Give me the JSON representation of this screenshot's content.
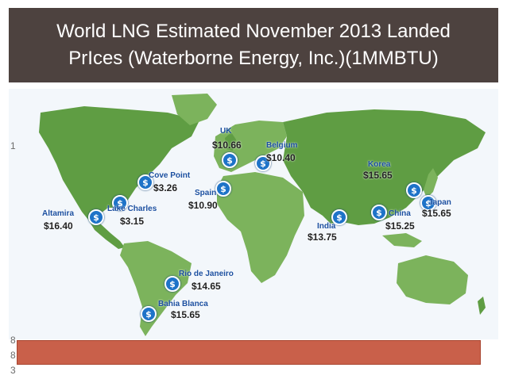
{
  "title": {
    "line1": "World LNG Estimated November 2013 Landed",
    "line2": "PrIces (Waterborne Energy, Inc.)(1MMBTU)"
  },
  "colors": {
    "title_bg": "#4d423f",
    "ocean": "#f3f7fb",
    "land": "#5f9d43",
    "marker": "#1e73c8",
    "bottom_bar": "#c9604a"
  },
  "markers": [
    {
      "name": "UK",
      "price": "$10.66"
    },
    {
      "name": "Belgium",
      "price": "$10.40"
    },
    {
      "name": "Cove Point",
      "price": "$3.26"
    },
    {
      "name": "Spain",
      "price": "$10.90"
    },
    {
      "name": "Lake Charles",
      "price": "$3.15"
    },
    {
      "name": "Altamira",
      "price": "$16.40"
    },
    {
      "name": "Korea",
      "price": "$15.65"
    },
    {
      "name": "Japan",
      "price": "$15.65"
    },
    {
      "name": "China",
      "price": "$15.25"
    },
    {
      "name": "India",
      "price": "$13.75"
    },
    {
      "name": "Rio de Janeiro",
      "price": "$14.65"
    },
    {
      "name": "Bahia Blanca",
      "price": "$15.65"
    }
  ],
  "edge_fragments": [
    "1",
    "8",
    "3"
  ],
  "pin_symbol": "$"
}
